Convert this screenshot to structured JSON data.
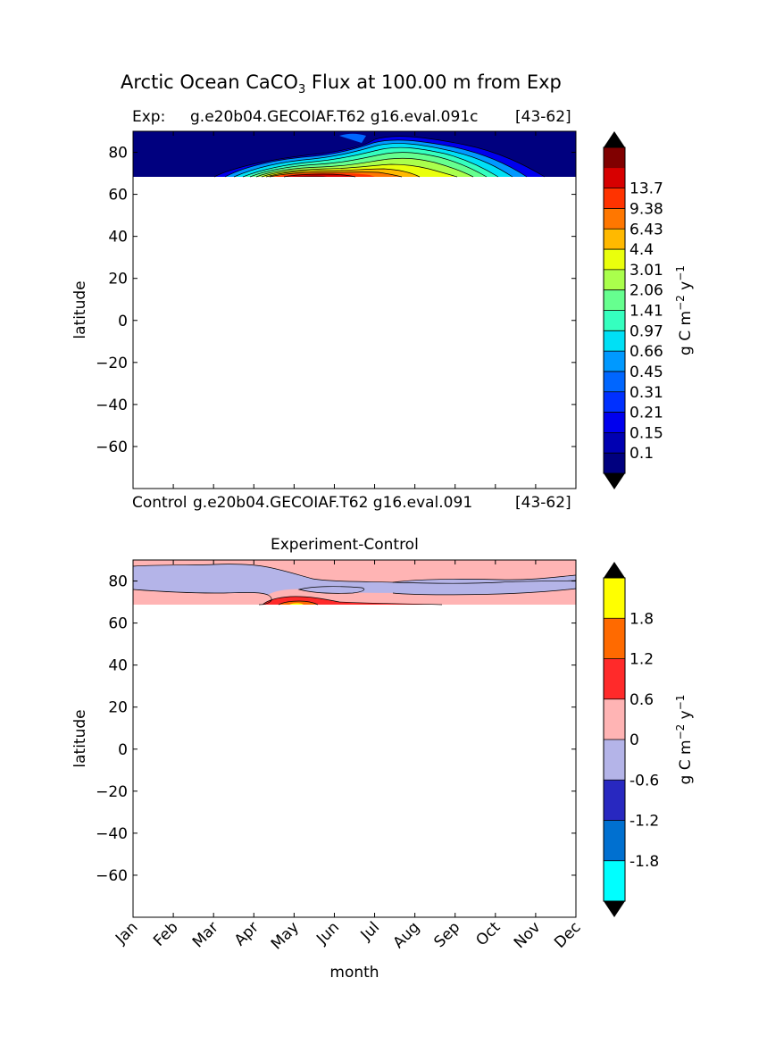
{
  "figure": {
    "title_main": "Arctic Ocean CaCO",
    "title_sub": "3",
    "title_rest": " Flux at 100.00 m from Exp"
  },
  "chart_data": [
    {
      "type": "heatmap",
      "title_left": "Exp:",
      "title_center": "g.e20b04.GECOIAF.T62 g16.eval.091c",
      "title_right": "[43-62]",
      "footer_left": "Control",
      "footer_center": "g.e20b04.GECOIAF.T62 g16.eval.091",
      "footer_right": "[43-62]",
      "ylabel": "latitude",
      "ylim": [
        -80,
        90
      ],
      "yticks": [
        80,
        60,
        40,
        20,
        0,
        -20,
        -40,
        -60
      ],
      "xlim": [
        0,
        11
      ],
      "data_lat_min": 68,
      "colorbar": {
        "label": "g C m",
        "label_exp": "−2",
        "label_mid": " y",
        "label_exp2": "−1",
        "levels": [
          "0.1",
          "0.15",
          "0.21",
          "0.31",
          "0.45",
          "0.66",
          "0.97",
          "1.41",
          "2.06",
          "3.01",
          "4.4",
          "6.43",
          "9.38",
          "13.7"
        ],
        "colors": [
          "#00007f",
          "#0000b2",
          "#0000ee",
          "#0030ff",
          "#0066ff",
          "#0099ff",
          "#00e0f5",
          "#35ffbf",
          "#66ff8f",
          "#aaff4c",
          "#eaff0c",
          "#ffb900",
          "#ff7700",
          "#ff3300",
          "#d70000",
          "#800000"
        ]
      }
    },
    {
      "type": "heatmap",
      "title": "Experiment-Control",
      "ylabel": "latitude",
      "xlabel": "month",
      "ylim": [
        -80,
        90
      ],
      "yticks": [
        80,
        60,
        40,
        20,
        0,
        -20,
        -40,
        -60
      ],
      "categories": [
        "Jan",
        "Feb",
        "Mar",
        "Apr",
        "May",
        "Jun",
        "Jul",
        "Aug",
        "Sep",
        "Oct",
        "Nov",
        "Dec"
      ],
      "data_lat_min": 68,
      "colorbar": {
        "label": "g C m",
        "label_exp": "−2",
        "label_mid": " y",
        "label_exp2": "−1",
        "levels": [
          "-1.8",
          "-1.2",
          "-0.6",
          "0",
          "0.6",
          "1.2",
          "1.8"
        ],
        "colors": [
          "#00ffff",
          "#0070d0",
          "#2828c0",
          "#b4b4e8",
          "#ffb4b4",
          "#ff2a2a",
          "#ff6a00",
          "#ffff00"
        ]
      }
    }
  ]
}
